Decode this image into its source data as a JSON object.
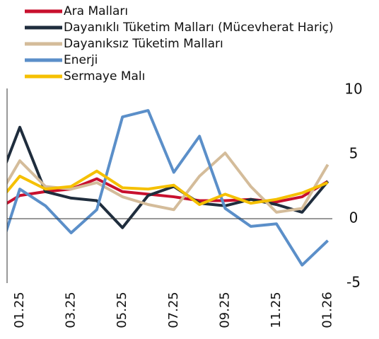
{
  "chart_data": {
    "type": "line",
    "categories": [
      null,
      "01.25",
      null,
      "03.25",
      null,
      "05.25",
      null,
      "07.25",
      null,
      "09.25",
      null,
      "11.25",
      null,
      "01.26"
    ],
    "series": [
      {
        "name": "Ara Malları",
        "color": "#c8102e",
        "values": [
          0.6,
          1.8,
          2.1,
          2.3,
          3.1,
          2.1,
          1.9,
          1.7,
          1.4,
          1.4,
          1.5,
          1.3,
          1.7,
          2.9
        ]
      },
      {
        "name": "Dayanıklı Tüketim Malları (Mücevherat Hariç)",
        "color": "#1f2d3d",
        "values": [
          1.9,
          7.1,
          2.1,
          1.6,
          1.4,
          -0.7,
          1.8,
          2.5,
          1.2,
          1.0,
          1.5,
          1.1,
          0.5,
          2.9
        ]
      },
      {
        "name": "Dayanıksız Tüketim Malları",
        "color": "#d4bc9a",
        "values": [
          1.1,
          4.5,
          2.5,
          2.3,
          2.8,
          1.7,
          1.1,
          0.7,
          3.3,
          5.1,
          2.5,
          0.5,
          0.8,
          4.2
        ]
      },
      {
        "name": "Enerji",
        "color": "#5b8fc9",
        "values": [
          -3.9,
          2.3,
          1.0,
          -1.1,
          0.7,
          7.9,
          8.4,
          3.6,
          6.4,
          0.8,
          -0.6,
          -0.4,
          -3.6,
          -1.7
        ]
      },
      {
        "name": "Sermaye Malı",
        "color": "#f5c000",
        "values": [
          0.9,
          3.3,
          2.3,
          2.5,
          3.7,
          2.4,
          2.3,
          2.6,
          1.1,
          1.9,
          1.2,
          1.5,
          2.0,
          2.8
        ]
      }
    ],
    "ylim": [
      -5,
      10
    ],
    "yticks": [
      -5,
      0,
      5,
      10
    ]
  }
}
